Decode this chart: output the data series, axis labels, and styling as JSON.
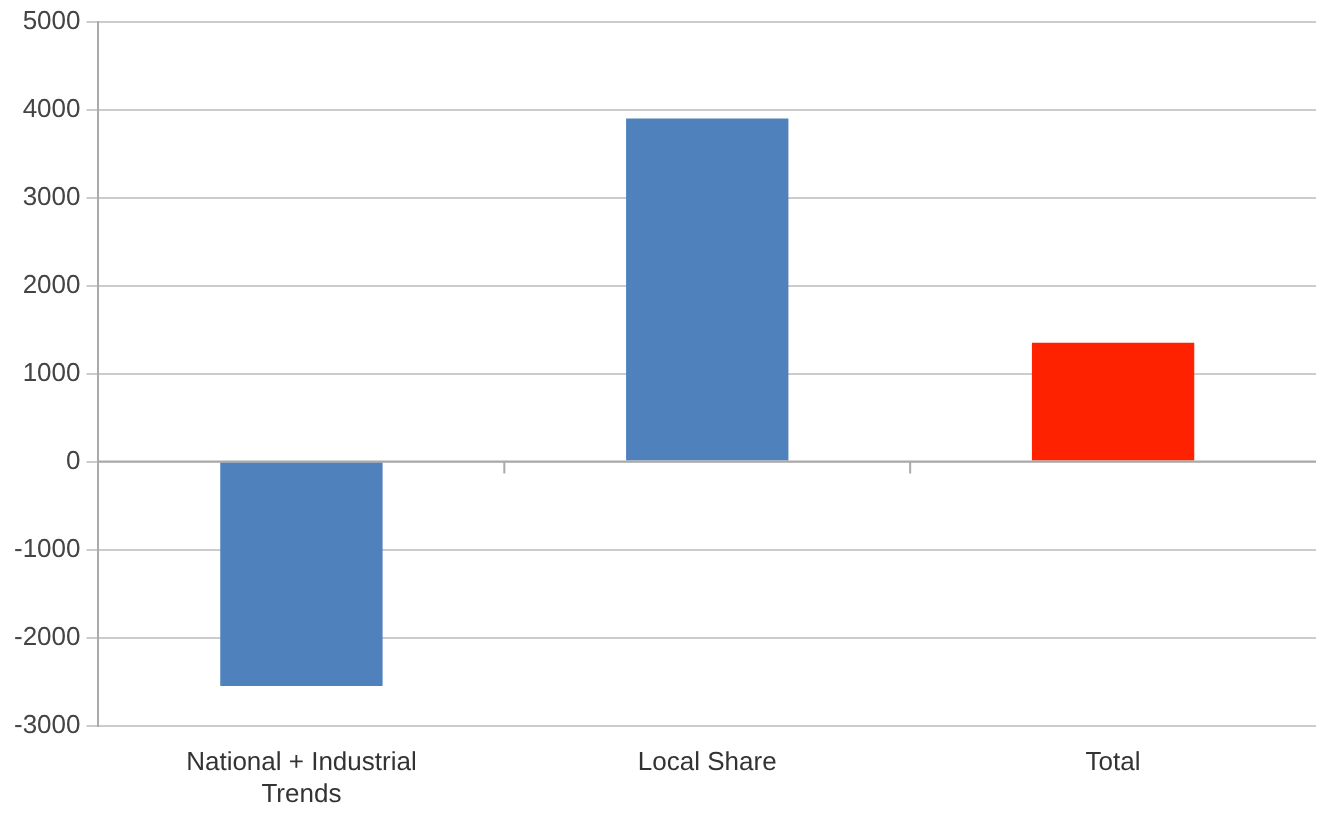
{
  "chart_data": {
    "type": "bar",
    "categories": [
      "National + Industrial Trends",
      "Local Share",
      "Total"
    ],
    "values": [
      -2550,
      3900,
      1350
    ],
    "colors": [
      "#4f81bd",
      "#4f81bd",
      "#ff2200"
    ],
    "ylim": [
      -3000,
      5000
    ],
    "yticks": [
      -3000,
      -2000,
      -1000,
      0,
      1000,
      2000,
      3000,
      4000,
      5000
    ],
    "grid": "y",
    "legend": false
  }
}
